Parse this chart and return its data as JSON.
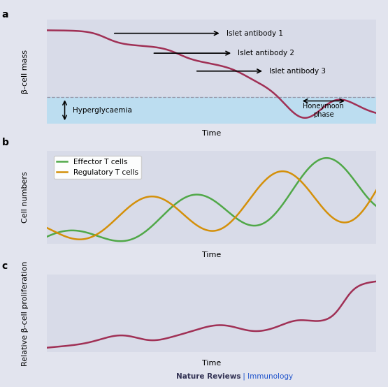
{
  "fig_width": 5.55,
  "fig_height": 5.54,
  "dpi": 100,
  "bg_color": "#e2e4ee",
  "panel_bg_a": "#d8dbe8",
  "panel_bg_b": "#d8dbe8",
  "panel_bg_c": "#d8dbe8",
  "hyperglycaemia_bg": "#bcddf0",
  "curve_color_dark_red": "#a03055",
  "curve_color_green": "#50a848",
  "curve_color_orange": "#d4900a",
  "text_color": "#222222",
  "title_color_nature": "#333355",
  "title_color_journal": "#2255cc",
  "label_a": "a",
  "label_b": "b",
  "label_c": "c",
  "panel_a_ylabel": "β-cell mass",
  "panel_b_ylabel": "Cell numbers",
  "panel_c_ylabel": "Relative β-cell proliferation",
  "xlabel": "Time",
  "annotation_ab1": "Islet antibody 1",
  "annotation_ab2": "Islet antibody 2",
  "annotation_ab3": "Islet antibody 3",
  "annotation_hyper": "Hyperglycaemia",
  "annotation_honeymoon": "Honeymoon\nphase",
  "legend_b1": "Effector T cells",
  "legend_b2": "Regulatory T cells",
  "footer_left": "Nature Reviews",
  "footer_sep": " | ",
  "footer_right": "Immunology"
}
